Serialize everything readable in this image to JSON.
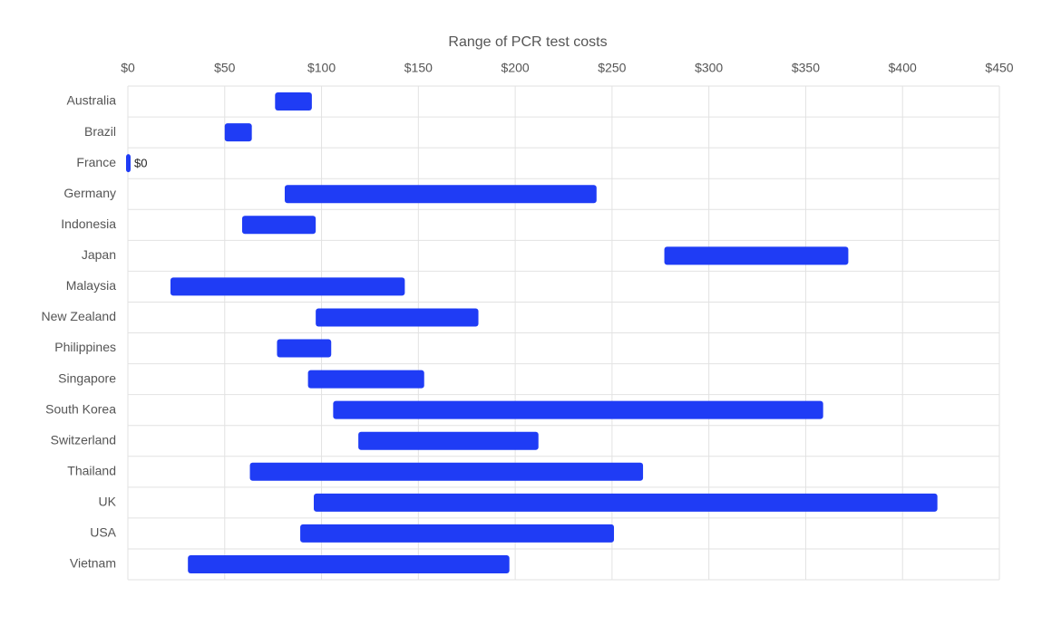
{
  "chart_data": {
    "type": "range-bar",
    "title": "Range of PCR test costs",
    "categories": [
      "Australia",
      "Brazil",
      "France",
      "Germany",
      "Indonesia",
      "Japan",
      "Malaysia",
      "New Zealand",
      "Philippines",
      "Singapore",
      "South Korea",
      "Switzerland",
      "Thailand",
      "UK",
      "USA",
      "Vietnam"
    ],
    "low": [
      76,
      50,
      0,
      81,
      59,
      277,
      22,
      97,
      77,
      93,
      106,
      119,
      63,
      96,
      89,
      31
    ],
    "high": [
      95,
      64,
      0,
      242,
      97,
      372,
      143,
      181,
      105,
      153,
      359,
      212,
      266,
      418,
      251,
      197
    ],
    "value_labels": [
      null,
      null,
      "$0",
      null,
      null,
      null,
      null,
      null,
      null,
      null,
      null,
      null,
      null,
      null,
      null,
      null
    ],
    "color": "#1f3cf5",
    "xlim": [
      0,
      450
    ],
    "xticks": [
      {
        "value": 0,
        "label": "$0"
      },
      {
        "value": 50,
        "label": "$50"
      },
      {
        "value": 100,
        "label": "$100"
      },
      {
        "value": 150,
        "label": "$150"
      },
      {
        "value": 200,
        "label": "$200"
      },
      {
        "value": 250,
        "label": "$250"
      },
      {
        "value": 300,
        "label": "$300"
      },
      {
        "value": 350,
        "label": "$350"
      },
      {
        "value": 400,
        "label": "$400"
      },
      {
        "value": 450,
        "label": "$450"
      }
    ],
    "grid": true
  }
}
